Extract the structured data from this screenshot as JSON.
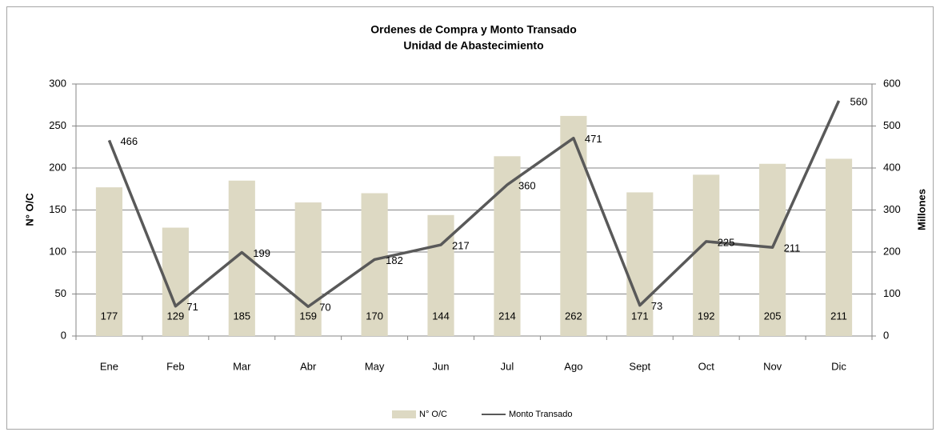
{
  "chart_data": {
    "type": "bar",
    "title": "Ordenes de Compra y Monto Transado",
    "subtitle": "Unidad de Abastecimiento",
    "y_label": "N° O/C",
    "y2_label": "Millones",
    "categories": [
      "Ene",
      "Feb",
      "Mar",
      "Abr",
      "May",
      "Jun",
      "Jul",
      "Ago",
      "Sept",
      "Oct",
      "Nov",
      "Dic"
    ],
    "series": [
      {
        "name": "N° O/C",
        "color": "#ddd9c3",
        "values": [
          177,
          129,
          185,
          159,
          170,
          144,
          214,
          262,
          171,
          192,
          205,
          211
        ]
      },
      {
        "name": "Monto Transado",
        "color": "#595959",
        "axis": "y2",
        "values": [
          466,
          71,
          199,
          70,
          182,
          217,
          360,
          471,
          73,
          225,
          211,
          560
        ]
      }
    ],
    "ylim": [
      0,
      300
    ],
    "yticks": [
      0,
      50,
      100,
      150,
      200,
      250,
      300
    ],
    "y2lim": [
      0,
      600
    ],
    "y2ticks": [
      0,
      100,
      200,
      300,
      400,
      500,
      600
    ],
    "grid": true,
    "legend": "bottom"
  }
}
